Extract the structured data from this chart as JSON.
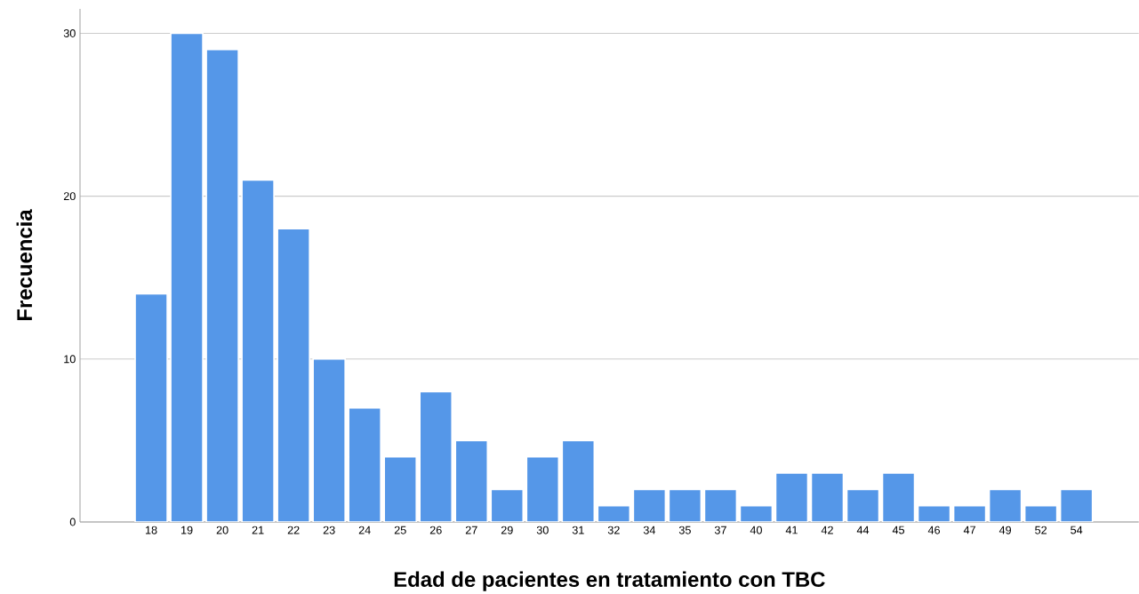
{
  "chart_data": {
    "type": "bar",
    "xlabel": "Edad de pacientes en tratamiento con TBC",
    "ylabel": "Frecuencia",
    "categories": [
      "18",
      "19",
      "20",
      "21",
      "22",
      "23",
      "24",
      "25",
      "26",
      "27",
      "29",
      "30",
      "31",
      "32",
      "34",
      "35",
      "37",
      "40",
      "41",
      "42",
      "44",
      "45",
      "46",
      "47",
      "49",
      "52",
      "54"
    ],
    "values": [
      14,
      30,
      29,
      21,
      18,
      10,
      7,
      4,
      8,
      5,
      2,
      4,
      5,
      1,
      2,
      2,
      2,
      1,
      3,
      3,
      2,
      3,
      1,
      1,
      2,
      1,
      2
    ],
    "color": "#5597e8",
    "ylim": [
      0,
      31.5
    ],
    "yticks": [
      0,
      10,
      20,
      30
    ],
    "grid": "y"
  }
}
